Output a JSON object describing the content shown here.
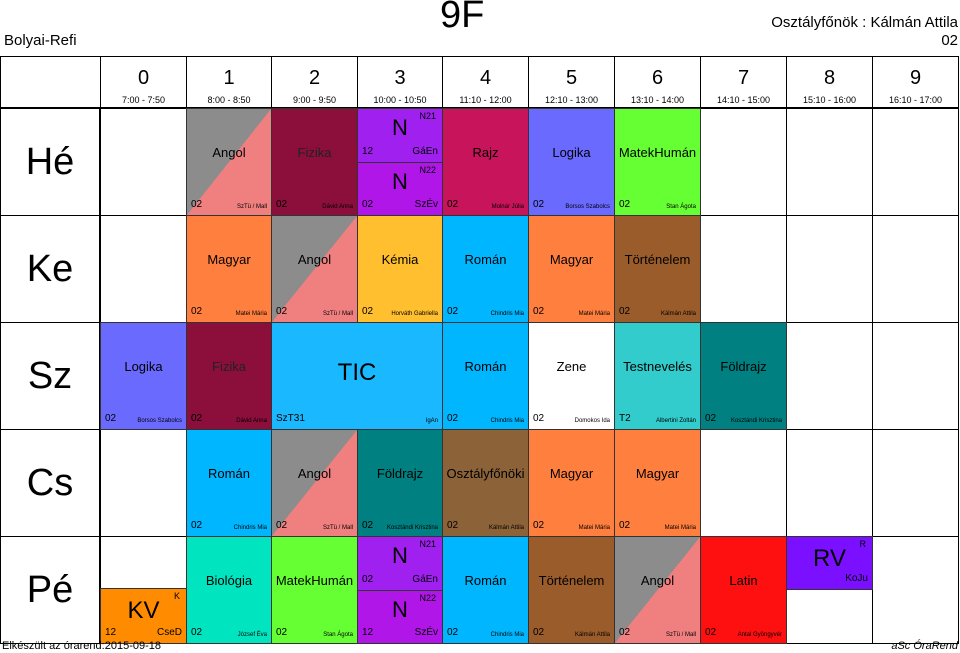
{
  "header": {
    "school": "Bolyai-Refi",
    "class_name": "9F",
    "class_teacher": "Osztályfőnök : Kálmán Attila",
    "room": "02"
  },
  "periods": [
    {
      "num": "0",
      "time": "7:00 - 7:50"
    },
    {
      "num": "1",
      "time": "8:00 - 8:50"
    },
    {
      "num": "2",
      "time": "9:00 - 9:50"
    },
    {
      "num": "3",
      "time": "10:00 - 10:50"
    },
    {
      "num": "4",
      "time": "11:10 - 12:00"
    },
    {
      "num": "5",
      "time": "12:10 - 13:00"
    },
    {
      "num": "6",
      "time": "13:10 - 14:00"
    },
    {
      "num": "7",
      "time": "14:10 - 15:00"
    },
    {
      "num": "8",
      "time": "15:10 - 16:00"
    },
    {
      "num": "9",
      "time": "16:10 - 17:00"
    }
  ],
  "days": [
    "Hé",
    "Ke",
    "Sz",
    "Cs",
    "Pé"
  ],
  "colors": {
    "angol_a": "#8c8c8c",
    "angol_b": "#f08080",
    "fizika": "#8b0f3a",
    "n_group": "#a020f0",
    "n_group2": "#b016e8",
    "rajz": "#c8145a",
    "logika": "#6a6aff",
    "matekhuman": "#66ff33",
    "magyar": "#ff7f3f",
    "kemia": "#ffbf2f",
    "roman": "#00b7ff",
    "tortenelem": "#9a5c2a",
    "tic": "#1ab8ff",
    "zene": "#ffffff",
    "testneveles": "#33cccc",
    "foldrajz": "#008080",
    "osztalyfonoki": "#8c6239",
    "biologia": "#00e5c0",
    "latin": "#ff1010",
    "rv": "#7a10ff",
    "kv": "#ff8c00"
  },
  "cells": {
    "he_angol": {
      "subject": "Angol",
      "room": "02",
      "teacher": "SzTü / Mall"
    },
    "he_fizika": {
      "subject": "Fizika",
      "room": "02",
      "teacher": "Dávid Anna"
    },
    "he_n1": {
      "letter": "N",
      "group": "N21",
      "room": "12",
      "teacher": "GáEn"
    },
    "he_n2": {
      "letter": "N",
      "group": "N22",
      "room": "02",
      "teacher": "SzÉv"
    },
    "he_rajz": {
      "subject": "Rajz",
      "room": "02",
      "teacher": "Molnár Júlia"
    },
    "he_logika": {
      "subject": "Logika",
      "room": "02",
      "teacher": "Borsos Szabolcs"
    },
    "he_matek": {
      "subject": "MatekHumán",
      "room": "02",
      "teacher": "Stan Ágota"
    },
    "ke_magyar1": {
      "subject": "Magyar",
      "room": "02",
      "teacher": "Matei Mária"
    },
    "ke_angol": {
      "subject": "Angol",
      "room": "02",
      "teacher": "SzTü / Mall"
    },
    "ke_kemia": {
      "subject": "Kémia",
      "room": "02",
      "teacher": "Horváth Gabriella"
    },
    "ke_roman": {
      "subject": "Román",
      "room": "02",
      "teacher": "Chindris Mia"
    },
    "ke_magyar2": {
      "subject": "Magyar",
      "room": "02",
      "teacher": "Matei Mária"
    },
    "ke_tort": {
      "subject": "Történelem",
      "room": "02",
      "teacher": "Kálmán Attila"
    },
    "sz_logika": {
      "subject": "Logika",
      "room": "02",
      "teacher": "Borsos Szabolcs"
    },
    "sz_fizika": {
      "subject": "Fizika",
      "room": "02",
      "teacher": "Dávid Anna"
    },
    "sz_tic": {
      "subject": "TIC",
      "room": "SzT31",
      "teacher": "IgAn"
    },
    "sz_roman": {
      "subject": "Román",
      "room": "02",
      "teacher": "Chindris Mia"
    },
    "sz_zene": {
      "subject": "Zene",
      "room": "02",
      "teacher": "Domokos Ida"
    },
    "sz_test": {
      "subject": "Testnevelés",
      "room": "T2",
      "teacher": "Albertini Zoltán"
    },
    "sz_fold": {
      "subject": "Földrajz",
      "room": "02",
      "teacher": "Kosztándi Krisztina"
    },
    "cs_roman": {
      "subject": "Román",
      "room": "02",
      "teacher": "Chindris Mia"
    },
    "cs_angol": {
      "subject": "Angol",
      "room": "02",
      "teacher": "SzTü / Mall"
    },
    "cs_fold": {
      "subject": "Földrajz",
      "room": "02",
      "teacher": "Kosztándi Krisztina"
    },
    "cs_osztf": {
      "subject": "Osztályfőnöki",
      "room": "02",
      "teacher": "Kálmán Attila"
    },
    "cs_magyar1": {
      "subject": "Magyar",
      "room": "02",
      "teacher": "Matei Mária"
    },
    "cs_magyar2": {
      "subject": "Magyar",
      "room": "02",
      "teacher": "Matei Mária"
    },
    "pe_kv": {
      "letter": "KV",
      "group": "K",
      "room": "12",
      "teacher": "CseD"
    },
    "pe_bio": {
      "subject": "Biológia",
      "room": "02",
      "teacher": "József Éva"
    },
    "pe_matek": {
      "subject": "MatekHumán",
      "room": "02",
      "teacher": "Stan Ágota"
    },
    "pe_n1": {
      "letter": "N",
      "group": "N21",
      "room": "02",
      "teacher": "GáEn"
    },
    "pe_n2": {
      "letter": "N",
      "group": "N22",
      "room": "12",
      "teacher": "SzÉv"
    },
    "pe_roman": {
      "subject": "Román",
      "room": "02",
      "teacher": "Chindris Mia"
    },
    "pe_tort": {
      "subject": "Történelem",
      "room": "02",
      "teacher": "Kálmán Attila"
    },
    "pe_angol": {
      "subject": "Angol",
      "room": "02",
      "teacher": "SzTü / Mall"
    },
    "pe_latin": {
      "subject": "Latin",
      "room": "02",
      "teacher": "Antal Gyöngyvér"
    },
    "pe_rv": {
      "letter": "RV",
      "group": "R",
      "teacher": "KoJu"
    }
  },
  "footer": {
    "generated": "Elkészült az órarend:2015-09-18",
    "brand": "aSc ÓraRend"
  }
}
